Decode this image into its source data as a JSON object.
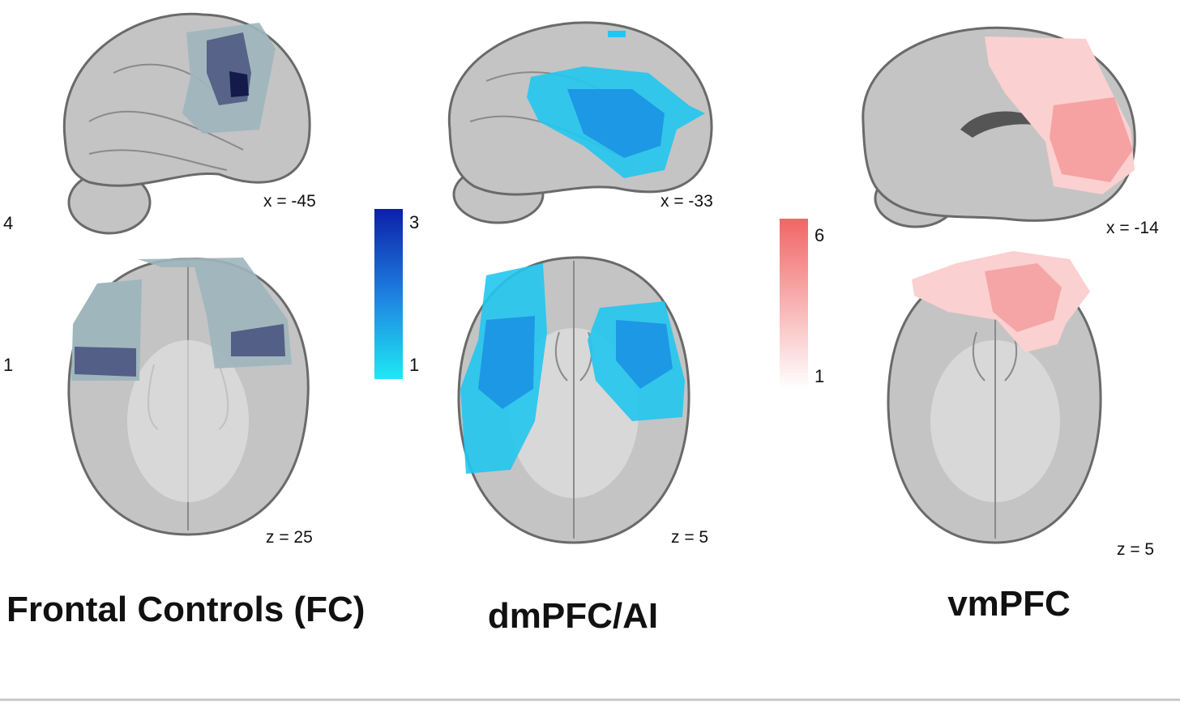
{
  "panels": [
    {
      "title": "Frontal Controls (FC)",
      "sagittal_label": "x = -45",
      "axial_label": "z = 25"
    },
    {
      "title": "dmPFC/AI",
      "sagittal_label": "x = -33",
      "axial_label": "z = 5"
    },
    {
      "title": "vmPFC",
      "sagittal_label": "x = -14",
      "axial_label": "z = 5"
    }
  ],
  "colorbars": [
    {
      "max": 4,
      "min": 1
    },
    {
      "max": 3,
      "min": 1
    },
    {
      "max": 6,
      "min": 1
    }
  ]
}
